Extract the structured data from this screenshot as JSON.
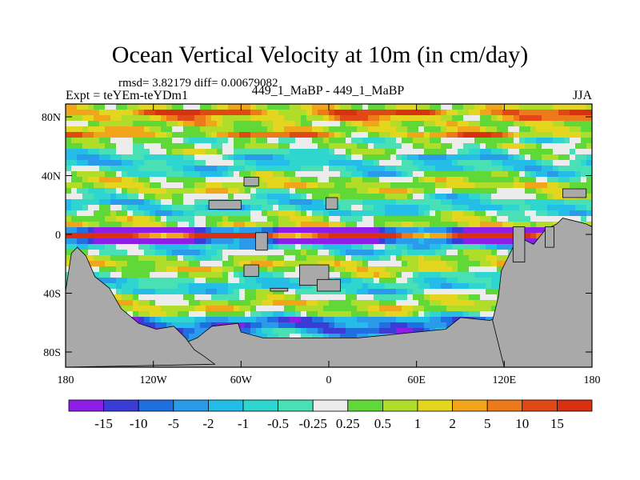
{
  "chart_data": {
    "type": "heatmap",
    "title": "Ocean Vertical Velocity at 10m (in cm/day)",
    "stats": "rmsd= 3.82179 diff= 0.00679082",
    "expt": "Expt = teYEm-teYDm1",
    "case": "449_1_MaBP - 449_1_MaBP",
    "season": "JJA",
    "x_tick_labels": [
      "180",
      "120W",
      "60W",
      "0",
      "60E",
      "120E",
      "180"
    ],
    "y_tick_labels": [
      "80N",
      "40N",
      "0",
      "40S",
      "80S"
    ],
    "xlim": [
      -180,
      180
    ],
    "ylim": [
      -90,
      90
    ],
    "colorbar_labels": [
      "-15",
      "-10",
      "-5",
      "-2",
      "-1",
      "-0.5",
      "-0.25",
      "0.25",
      "0.5",
      "1",
      "2",
      "5",
      "10",
      "15"
    ],
    "colorbar_colors": [
      "#8c1ee8",
      "#3b3bd6",
      "#1f6fe0",
      "#2a9bea",
      "#23bde8",
      "#2fd6d0",
      "#48e0b4",
      "#ececec",
      "#60d838",
      "#b0dc2a",
      "#e4d61e",
      "#f0a51a",
      "#ec7a1a",
      "#e04818",
      "#d83010"
    ],
    "land_color": "#a9a9a9"
  }
}
